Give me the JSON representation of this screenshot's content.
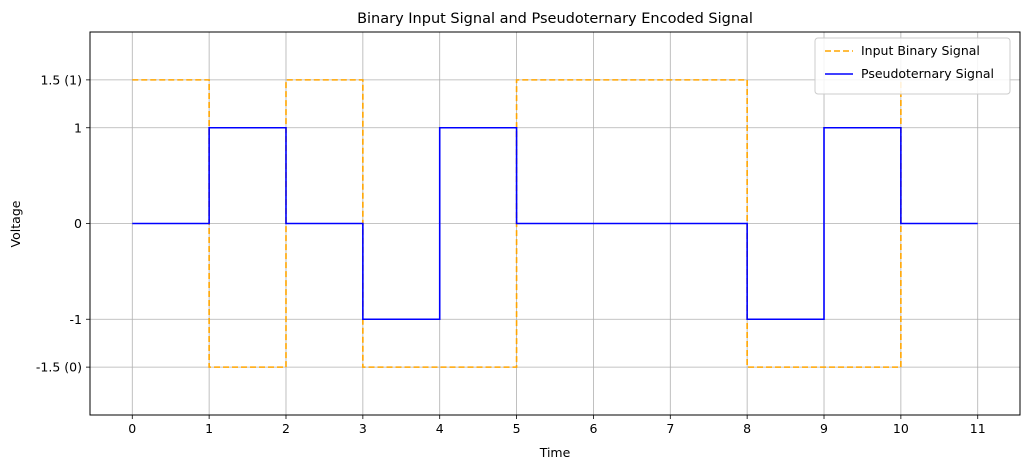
{
  "chart_data": {
    "type": "line",
    "title": "Binary Input Signal and Pseudoternary Encoded Signal",
    "xlabel": "Time",
    "ylabel": "Voltage",
    "xlim": [
      -0.55,
      11.55
    ],
    "ylim": [
      -2.0,
      2.0
    ],
    "grid": true,
    "legend_position": "top-right",
    "x_ticks": [
      {
        "value": 0,
        "label": "0"
      },
      {
        "value": 1,
        "label": "1"
      },
      {
        "value": 2,
        "label": "2"
      },
      {
        "value": 3,
        "label": "3"
      },
      {
        "value": 4,
        "label": "4"
      },
      {
        "value": 5,
        "label": "5"
      },
      {
        "value": 6,
        "label": "6"
      },
      {
        "value": 7,
        "label": "7"
      },
      {
        "value": 8,
        "label": "8"
      },
      {
        "value": 9,
        "label": "9"
      },
      {
        "value": 10,
        "label": "10"
      },
      {
        "value": 11,
        "label": "11"
      }
    ],
    "y_ticks": [
      {
        "value": 1.5,
        "label": "1.5 (1)"
      },
      {
        "value": 1,
        "label": "1"
      },
      {
        "value": 0,
        "label": "0"
      },
      {
        "value": -1,
        "label": "-1"
      },
      {
        "value": -1.5,
        "label": "-1.5 (0)"
      }
    ],
    "series": [
      {
        "name": "Input Binary Signal",
        "color": "#ffa500",
        "style": "dashed",
        "drawstyle": "steps-post",
        "x": [
          0,
          1,
          2,
          3,
          4,
          5,
          6,
          7,
          8,
          9,
          10
        ],
        "y": [
          1.5,
          -1.5,
          1.5,
          -1.5,
          -1.5,
          1.5,
          1.5,
          1.5,
          -1.5,
          -1.5,
          1.5
        ]
      },
      {
        "name": "Pseudoternary Signal",
        "color": "#0000ff",
        "style": "solid",
        "drawstyle": "steps-post",
        "x": [
          0,
          1,
          2,
          3,
          4,
          5,
          6,
          7,
          8,
          9,
          10,
          11
        ],
        "y": [
          0,
          1,
          0,
          -1,
          1,
          0,
          0,
          0,
          -1,
          1,
          0,
          0
        ]
      }
    ]
  }
}
